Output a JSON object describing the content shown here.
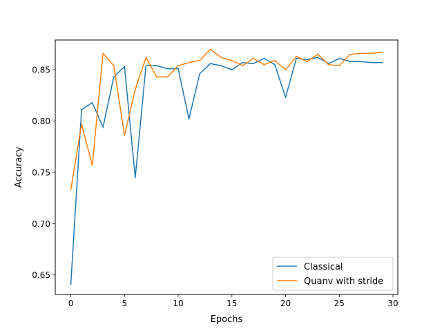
{
  "chart_data": {
    "type": "line",
    "title": "",
    "xlabel": "Epochs",
    "ylabel": "Accuracy",
    "xlim": [
      -1.45,
      30.45
    ],
    "ylim": [
      0.631,
      0.879
    ],
    "xticks": [
      0,
      5,
      10,
      15,
      20,
      25,
      30
    ],
    "yticks": [
      0.65,
      0.7,
      0.75,
      0.8,
      0.85
    ],
    "ytick_labels": [
      "0.65",
      "0.70",
      "0.75",
      "0.80",
      "0.85"
    ],
    "grid": false,
    "legend_position": "bottom-right",
    "x": [
      0,
      1,
      2,
      3,
      4,
      5,
      6,
      7,
      8,
      9,
      10,
      11,
      12,
      13,
      14,
      15,
      16,
      17,
      18,
      19,
      20,
      21,
      22,
      23,
      24,
      25,
      26,
      27,
      28,
      29
    ],
    "series": [
      {
        "name": "Classical",
        "color": "#1f77b4",
        "values": [
          0.641,
          0.811,
          0.818,
          0.794,
          0.843,
          0.853,
          0.745,
          0.854,
          0.854,
          0.851,
          0.851,
          0.802,
          0.846,
          0.856,
          0.854,
          0.85,
          0.857,
          0.856,
          0.861,
          0.855,
          0.823,
          0.861,
          0.86,
          0.862,
          0.856,
          0.861,
          0.858,
          0.858,
          0.857,
          0.857
        ]
      },
      {
        "name": "Quanv with stride",
        "color": "#ff7f0e",
        "values": [
          0.733,
          0.797,
          0.757,
          0.866,
          0.854,
          0.786,
          0.831,
          0.862,
          0.843,
          0.843,
          0.854,
          0.857,
          0.859,
          0.87,
          0.862,
          0.859,
          0.854,
          0.861,
          0.855,
          0.859,
          0.85,
          0.863,
          0.858,
          0.865,
          0.855,
          0.854,
          0.865,
          0.866,
          0.866,
          0.867
        ]
      }
    ]
  }
}
